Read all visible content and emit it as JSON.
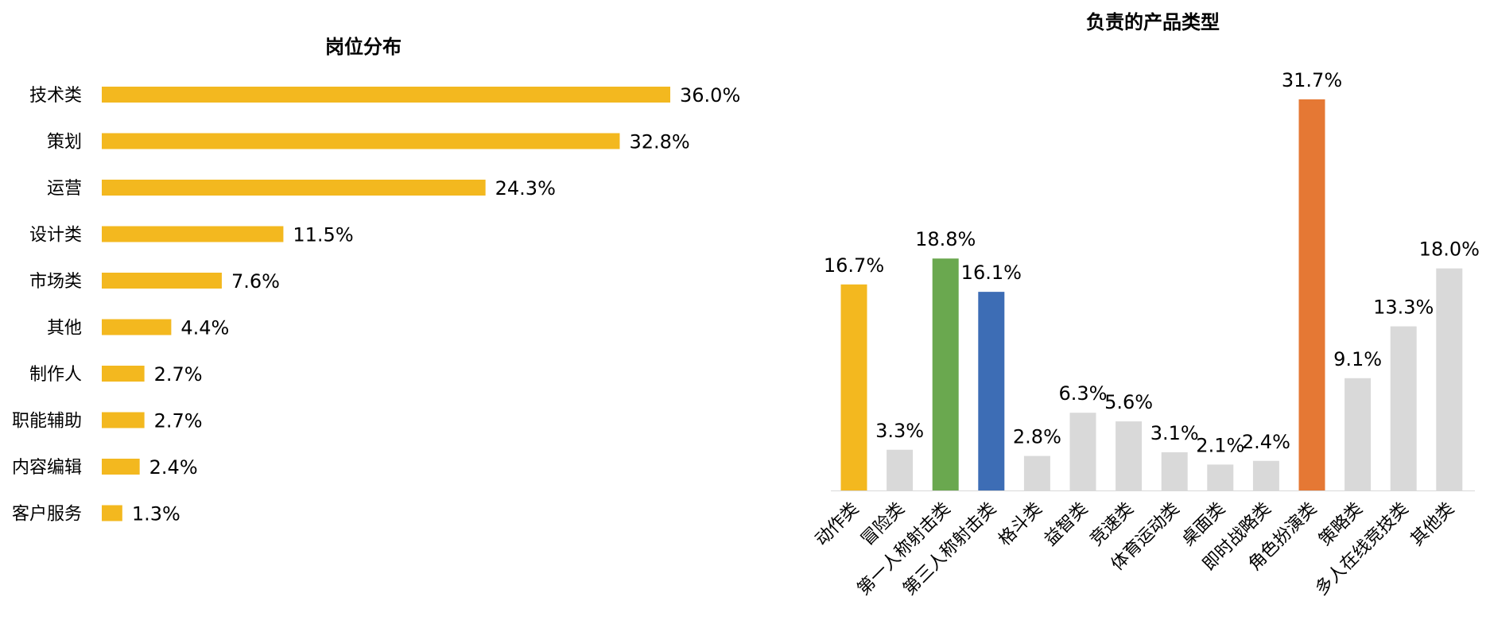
{
  "chart_data": [
    {
      "type": "bar",
      "orientation": "horizontal",
      "title": "岗位分布",
      "categories": [
        "技术类",
        "策划",
        "运营",
        "设计类",
        "市场类",
        "其他",
        "制作人",
        "职能辅助",
        "内容编辑",
        "客户服务"
      ],
      "values": [
        36.0,
        32.8,
        24.3,
        11.5,
        7.6,
        4.4,
        2.7,
        2.7,
        2.4,
        1.3
      ],
      "value_labels": [
        "36.0%",
        "32.8%",
        "24.3%",
        "11.5%",
        "7.6%",
        "4.4%",
        "2.7%",
        "2.7%",
        "2.4%",
        "1.3%"
      ],
      "unit": "%",
      "color": "#F3B81F",
      "grid": false
    },
    {
      "type": "bar",
      "orientation": "vertical",
      "title": "负责的产品类型",
      "categories": [
        "动作类",
        "冒险类",
        "第一人称射击类",
        "第三人称射击类",
        "格斗类",
        "益智类",
        "竞速类",
        "体育运动类",
        "桌面类",
        "即时战略类",
        "角色扮演类",
        "策略类",
        "多人在线竞技类",
        "其他类"
      ],
      "values": [
        16.7,
        3.3,
        18.8,
        16.1,
        2.8,
        6.3,
        5.6,
        3.1,
        2.1,
        2.4,
        31.7,
        9.1,
        13.3,
        18.0
      ],
      "value_labels": [
        "16.7%",
        "3.3%",
        "18.8%",
        "16.1%",
        "2.8%",
        "6.3%",
        "5.6%",
        "3.1%",
        "2.1%",
        "2.4%",
        "31.7%",
        "9.1%",
        "13.3%",
        "18.0%"
      ],
      "colors": [
        "#F3B81F",
        "#D9D9D9",
        "#6AA84F",
        "#3D6DB5",
        "#D9D9D9",
        "#D9D9D9",
        "#D9D9D9",
        "#D9D9D9",
        "#D9D9D9",
        "#D9D9D9",
        "#E57834",
        "#D9D9D9",
        "#D9D9D9",
        "#D9D9D9"
      ],
      "unit": "%",
      "grid": false
    }
  ]
}
